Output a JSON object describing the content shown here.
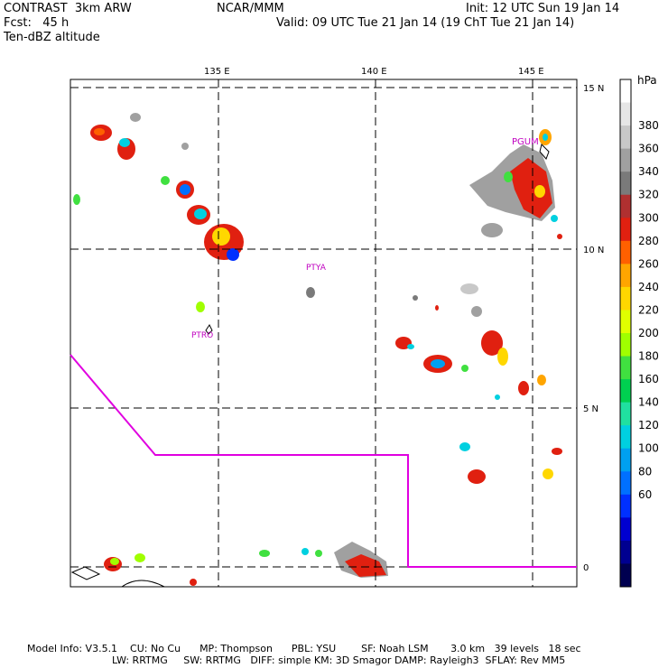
{
  "header": {
    "model": "CONTRAST  3km ARW",
    "center": "NCAR/MMM",
    "init": "Init: 12 UTC Sun 19 Jan 14",
    "fcst": "Fcst:   45 h",
    "valid": "Valid: 09 UTC Tue 21 Jan 14 (19 ChT Tue 21 Jan 14)",
    "field": "Ten-dBZ altitude"
  },
  "map": {
    "lon_labels": [
      "135 E",
      "140 E",
      "145 E"
    ],
    "lat_labels": [
      "15 N",
      "10 N",
      "5 N",
      "0"
    ],
    "stations": [
      "PGUM",
      "PTYA",
      "PTRO"
    ],
    "colors": {
      "boundary": "#e000e0",
      "grid": "#000000",
      "station": "#c000c0"
    }
  },
  "colorbar": {
    "unit": "hPa",
    "levels": [
      "380",
      "360",
      "340",
      "320",
      "300",
      "280",
      "260",
      "240",
      "220",
      "200",
      "180",
      "160",
      "140",
      "120",
      "100",
      "80",
      "60"
    ],
    "colors": [
      "#ffffff",
      "#e6e6e6",
      "#c8c8c8",
      "#a0a0a0",
      "#7a7a7a",
      "#b03030",
      "#e02010",
      "#ff6000",
      "#ffa500",
      "#ffd700",
      "#e0ff00",
      "#a0ff00",
      "#40e040",
      "#00d050",
      "#20e0a0",
      "#00d0e0",
      "#00a0f0",
      "#0070ff",
      "#0030ff",
      "#0000d0",
      "#000090",
      "#000050"
    ]
  },
  "footer": {
    "line1": "Model Info: V3.5.1    CU: No Cu      MP: Thompson      PBL: YSU        SF: Noah LSM       3.0 km   39 levels   18 sec",
    "line2": "LW: RRTMG     SW: RRTMG   DIFF: simple KM: 3D Smagor DAMP: Rayleigh3  SFLAY: Rev MM5"
  }
}
